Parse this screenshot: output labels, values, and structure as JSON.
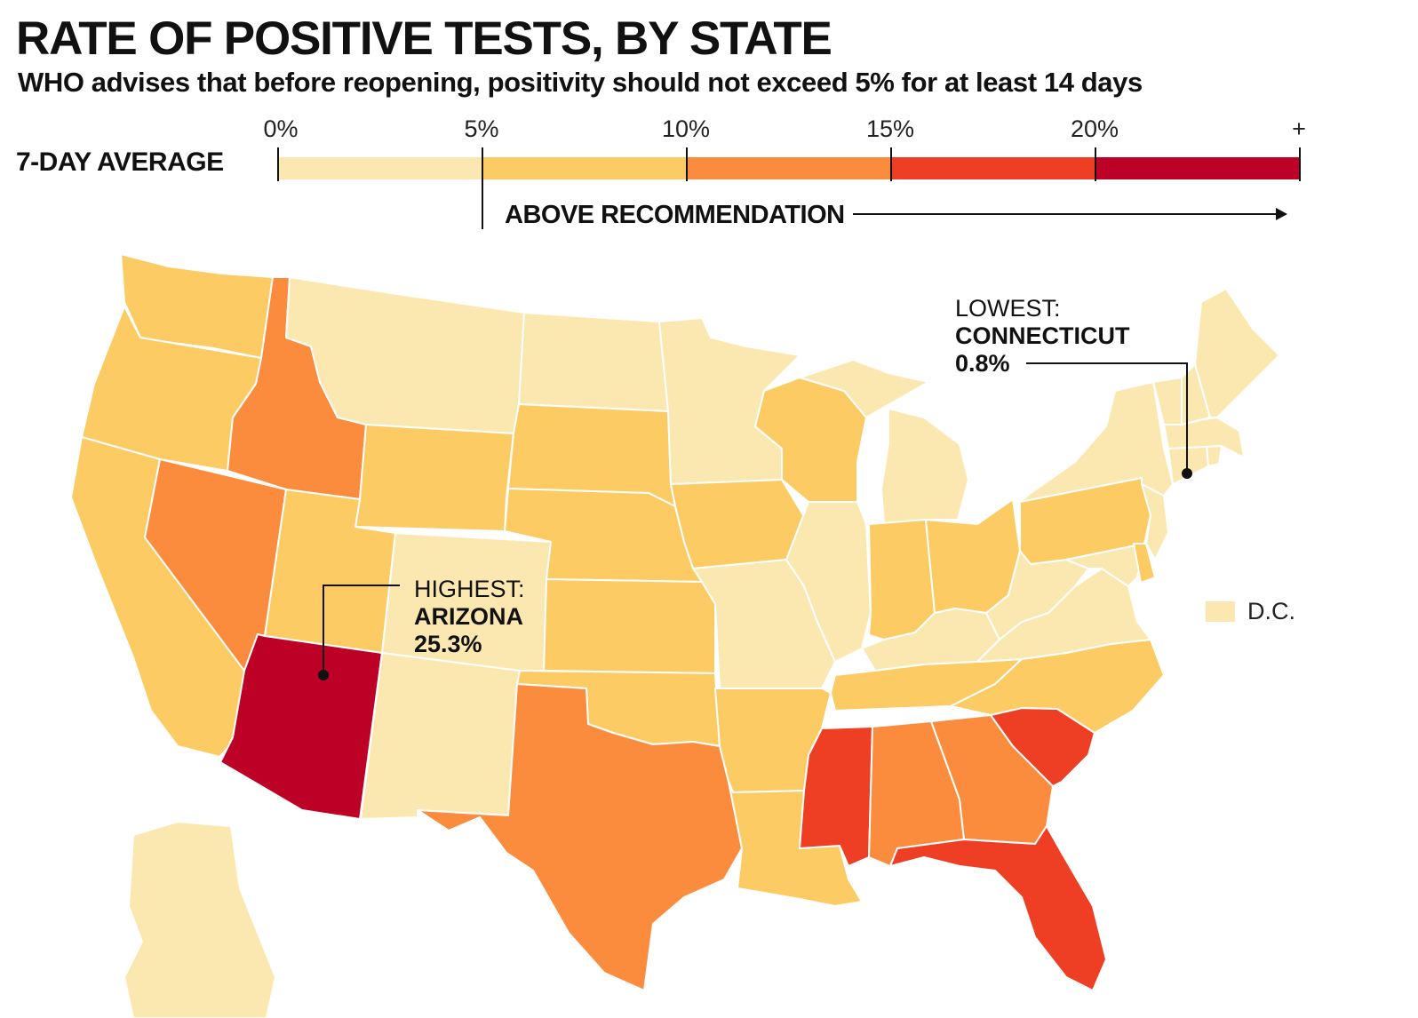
{
  "title": "RATE OF POSITIVE TESTS, BY STATE",
  "subtitle": "WHO advises that before reopening, positivity should not exceed 5% for at least 14 days",
  "legend": {
    "label": "7-DAY AVERAGE",
    "ticks": [
      {
        "label": "0%",
        "value": 0
      },
      {
        "label": "5%",
        "value": 5
      },
      {
        "label": "10%",
        "value": 10
      },
      {
        "label": "15%",
        "value": 15
      },
      {
        "label": "20%",
        "value": 20
      },
      {
        "label": "+",
        "value": 25
      }
    ],
    "bins": [
      {
        "range": "0-5%",
        "color": "#FBE8B1"
      },
      {
        "range": "5-10%",
        "color": "#FDCB63"
      },
      {
        "range": "10-15%",
        "color": "#FB8C3E"
      },
      {
        "range": "15-20%",
        "color": "#EE3F25"
      },
      {
        "range": "20%+",
        "color": "#BD0126"
      }
    ],
    "above_text": "ABOVE RECOMMENDATION"
  },
  "callouts": {
    "highest": {
      "label": "HIGHEST:",
      "state": "ARIZONA",
      "value": "25.3%"
    },
    "lowest": {
      "label": "LOWEST:",
      "state": "CONNECTICUT",
      "value": "0.8%"
    }
  },
  "dc": {
    "label": "D.C.",
    "bin": 0
  },
  "states": {
    "WA": 1,
    "OR": 1,
    "CA": 1,
    "ID": 2,
    "NV": 2,
    "MT": 0,
    "WY": 1,
    "UT": 1,
    "AZ": 4,
    "CO": 0,
    "NM": 0,
    "ND": 0,
    "SD": 1,
    "NE": 1,
    "KS": 1,
    "OK": 1,
    "TX": 2,
    "MN": 0,
    "IA": 1,
    "MO": 0,
    "AR": 1,
    "LA": 1,
    "WI": 1,
    "IL": 0,
    "MI": 0,
    "IN": 1,
    "OH": 1,
    "KY": 0,
    "TN": 1,
    "MS": 3,
    "AL": 2,
    "GA": 2,
    "FL": 3,
    "SC": 3,
    "NC": 1,
    "VA": 0,
    "WV": 0,
    "PA": 1,
    "NY": 0,
    "NJ": 0,
    "DE": 1,
    "MD": 0,
    "CT": 0,
    "RI": 0,
    "MA": 0,
    "VT": 0,
    "NH": 0,
    "ME": 0,
    "AK": 0
  }
}
